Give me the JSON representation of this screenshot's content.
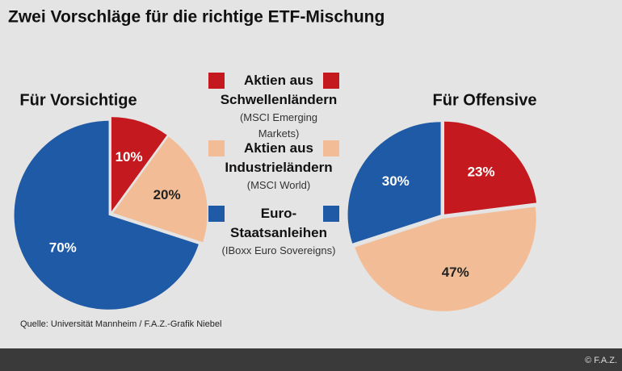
{
  "title": "Zwei Vorschläge für die richtige ETF-Mischung",
  "legend": [
    {
      "name": "Aktien aus Schwellenländern",
      "detail": "(MSCI Emerging Markets)",
      "color": "#c41a1f"
    },
    {
      "name": "Aktien aus Industrieländern",
      "detail": "(MSCI World)",
      "color": "#f2bd96"
    },
    {
      "name": "Euro-Staatsanleihen",
      "detail": "(IBoxx Euro Sovereigns)",
      "color": "#1f5aa6"
    }
  ],
  "chart_data": [
    {
      "type": "pie",
      "title": "Für Vorsichtige",
      "values": [
        10,
        20,
        70
      ],
      "value_labels": [
        "10%",
        "20%",
        "70%"
      ],
      "colors": [
        "#c41a1f",
        "#f2bd96",
        "#1f5aa6"
      ]
    },
    {
      "type": "pie",
      "title": "Für Offensive",
      "values": [
        23,
        47,
        30
      ],
      "value_labels": [
        "23%",
        "47%",
        "30%"
      ],
      "colors": [
        "#c41a1f",
        "#f2bd96",
        "#1f5aa6"
      ]
    }
  ],
  "source": "Quelle: Universität Mannheim / F.A.Z.-Grafik Niebel",
  "copyright": "© F.A.Z."
}
